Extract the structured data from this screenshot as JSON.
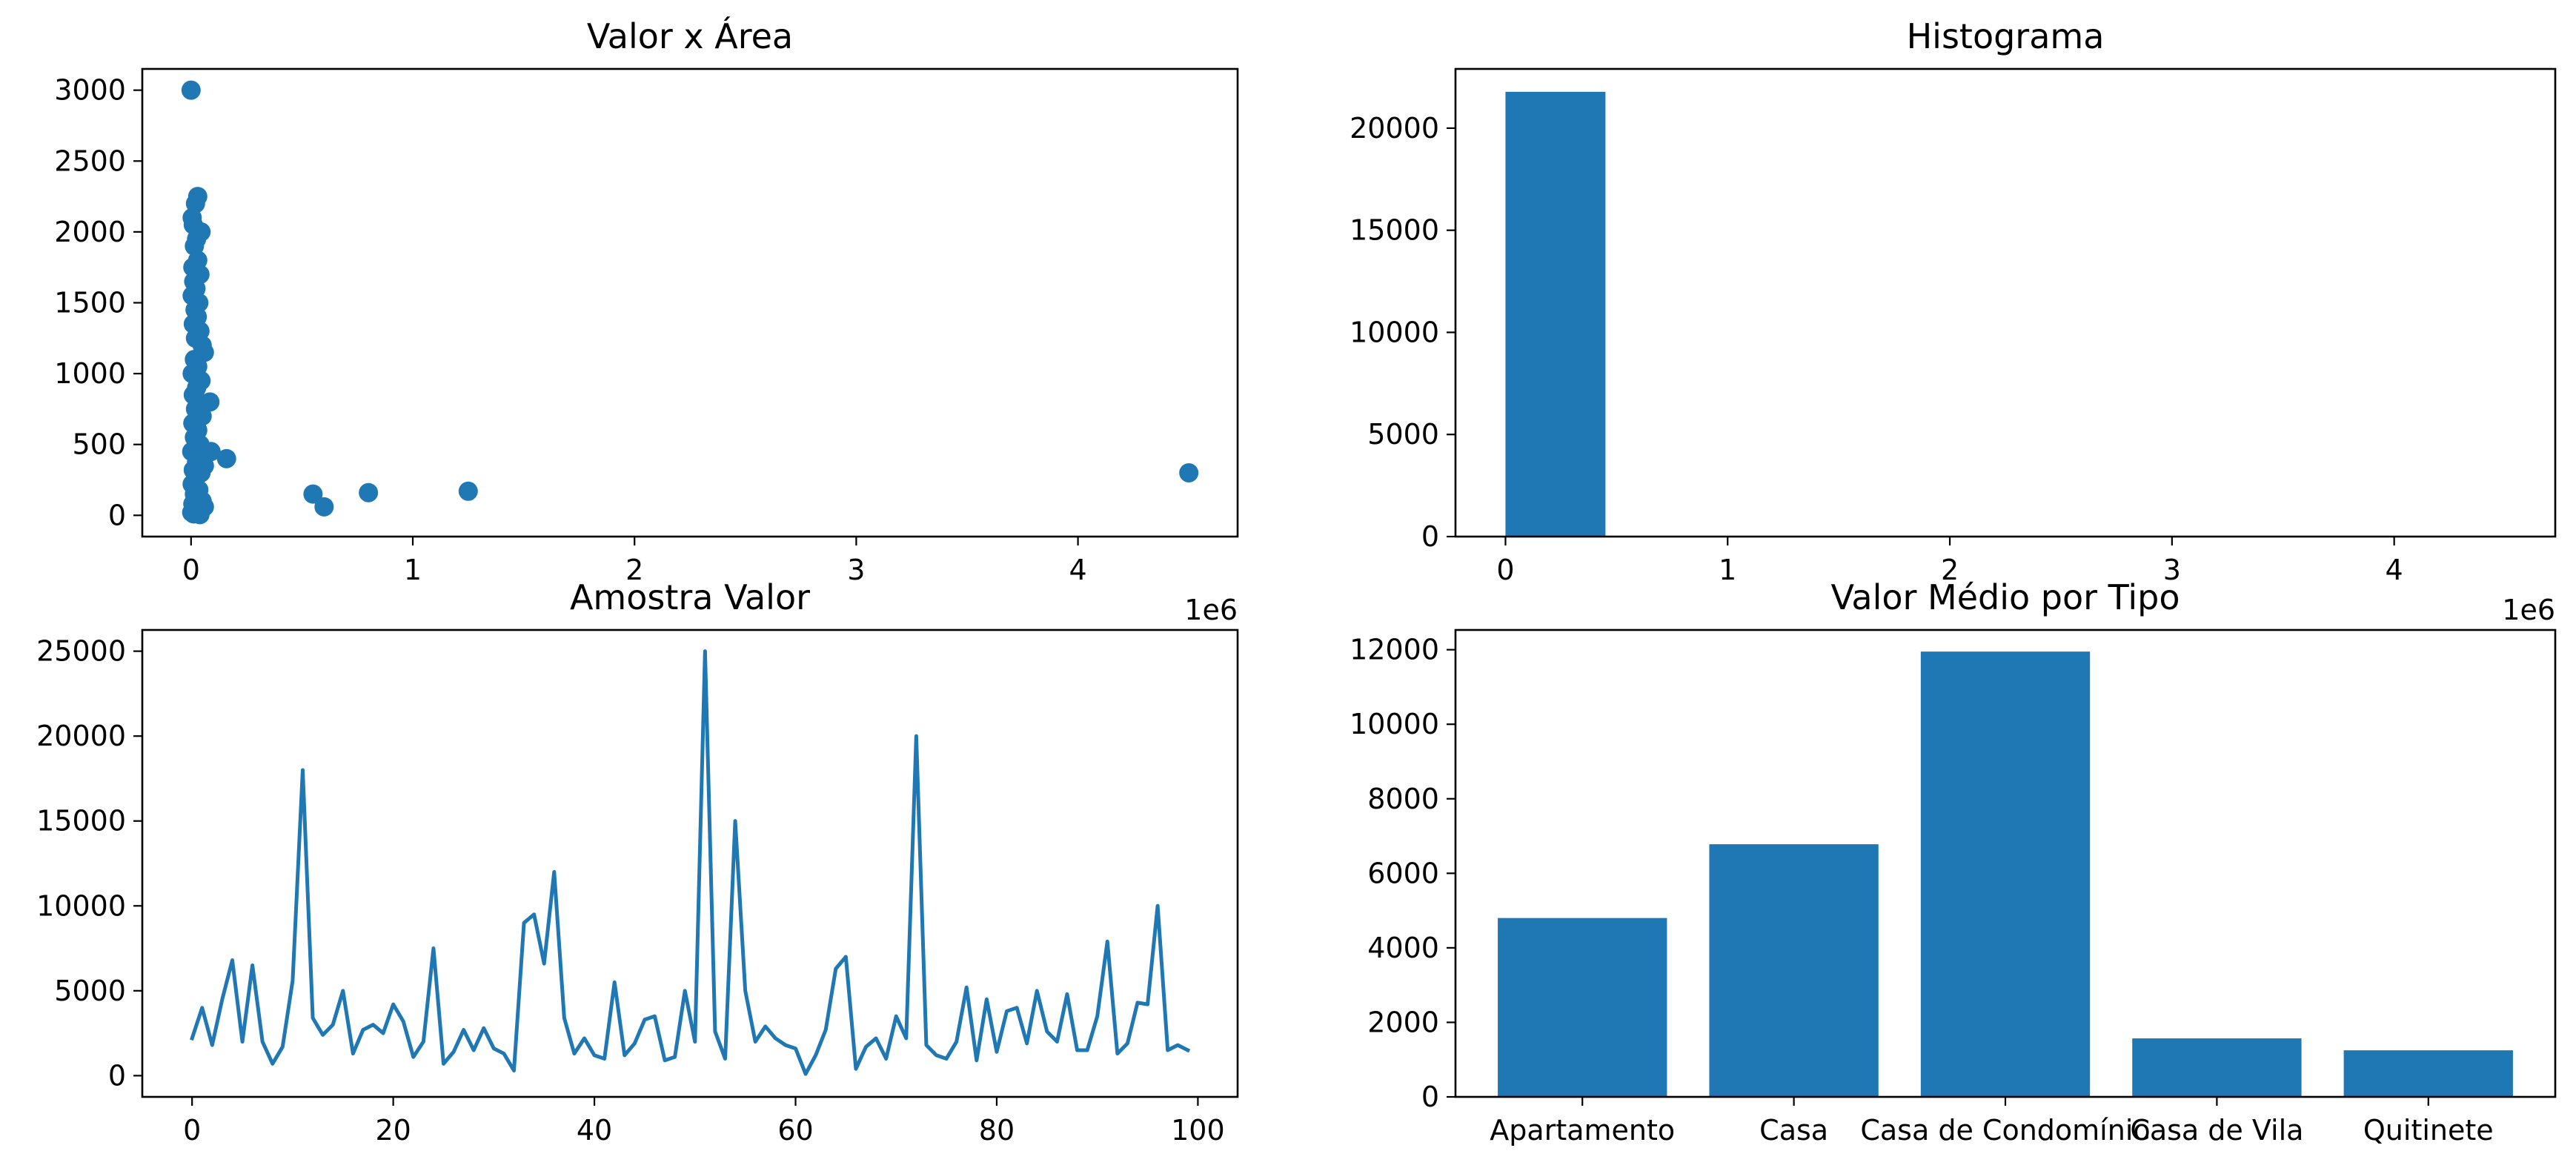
{
  "chart_data": [
    {
      "type": "scatter",
      "title": "Valor x Área",
      "xlabel": "",
      "ylabel": "",
      "x_offset_label": "1e6",
      "xlim": [
        -0.22,
        4.72
      ],
      "ylim": [
        -150,
        3150
      ],
      "x_ticks": [
        0,
        1,
        2,
        3,
        4
      ],
      "y_ticks": [
        0,
        500,
        1000,
        1500,
        2000,
        2500,
        3000
      ],
      "grid": false,
      "color": "#1f77b4",
      "points": [
        [
          0.0,
          3000
        ],
        [
          0.03,
          2250
        ],
        [
          0.02,
          2200
        ],
        [
          0.005,
          2100
        ],
        [
          0.01,
          2050
        ],
        [
          0.045,
          2000
        ],
        [
          0.025,
          1950
        ],
        [
          0.015,
          1900
        ],
        [
          0.03,
          1800
        ],
        [
          0.008,
          1750
        ],
        [
          0.04,
          1700
        ],
        [
          0.012,
          1650
        ],
        [
          0.022,
          1600
        ],
        [
          0.005,
          1550
        ],
        [
          0.035,
          1500
        ],
        [
          0.018,
          1450
        ],
        [
          0.028,
          1400
        ],
        [
          0.01,
          1350
        ],
        [
          0.04,
          1300
        ],
        [
          0.02,
          1250
        ],
        [
          0.05,
          1200
        ],
        [
          0.06,
          1150
        ],
        [
          0.015,
          1100
        ],
        [
          0.03,
          1050
        ],
        [
          0.005,
          1000
        ],
        [
          0.045,
          950
        ],
        [
          0.025,
          900
        ],
        [
          0.01,
          850
        ],
        [
          0.035,
          800
        ],
        [
          0.085,
          800
        ],
        [
          0.02,
          750
        ],
        [
          0.05,
          700
        ],
        [
          0.008,
          650
        ],
        [
          0.03,
          600
        ],
        [
          0.015,
          550
        ],
        [
          0.04,
          500
        ],
        [
          0.003,
          450
        ],
        [
          0.09,
          450
        ],
        [
          0.16,
          400
        ],
        [
          0.025,
          380
        ],
        [
          0.06,
          350
        ],
        [
          0.01,
          320
        ],
        [
          0.045,
          300
        ],
        [
          0.02,
          260
        ],
        [
          0.005,
          220
        ],
        [
          0.035,
          180
        ],
        [
          0.015,
          150
        ],
        [
          0.025,
          120
        ],
        [
          0.05,
          100
        ],
        [
          0.008,
          80
        ],
        [
          0.06,
          60
        ],
        [
          0.02,
          40
        ],
        [
          0.003,
          20
        ],
        [
          0.012,
          10
        ],
        [
          0.04,
          5
        ],
        [
          0.55,
          150
        ],
        [
          0.6,
          60
        ],
        [
          0.8,
          160
        ],
        [
          1.25,
          170
        ],
        [
          4.5,
          300
        ]
      ]
    },
    {
      "type": "bar",
      "title": "Histograma",
      "xlabel": "",
      "ylabel": "",
      "x_offset_label": "1e6",
      "xlim": [
        -0.225,
        4.725
      ],
      "ylim": [
        0,
        22900
      ],
      "x_ticks": [
        0,
        1,
        2,
        3,
        4
      ],
      "y_ticks": [
        0,
        5000,
        10000,
        15000,
        20000
      ],
      "grid": false,
      "color": "#1f77b4",
      "bin_edges": [
        0,
        0.45,
        0.9,
        1.35,
        1.8,
        2.25,
        2.7,
        3.15,
        3.6,
        4.05,
        4.5
      ],
      "counts": [
        21780,
        5,
        1,
        1,
        0,
        0,
        0,
        0,
        0,
        1
      ]
    },
    {
      "type": "line",
      "title": "Amostra Valor",
      "xlabel": "",
      "ylabel": "",
      "xlim": [
        -4.95,
        103.95
      ],
      "ylim": [
        -1250,
        26250
      ],
      "x_ticks": [
        0,
        20,
        40,
        60,
        80,
        100
      ],
      "y_ticks": [
        0,
        5000,
        10000,
        15000,
        20000,
        25000
      ],
      "grid": false,
      "color": "#1f77b4",
      "values": [
        2200,
        4000,
        1800,
        4500,
        6800,
        2000,
        6500,
        2000,
        700,
        1700,
        5600,
        18000,
        3400,
        2400,
        3000,
        5000,
        1300,
        2700,
        3000,
        2500,
        4200,
        3200,
        1100,
        2000,
        7500,
        700,
        1400,
        2700,
        1500,
        2800,
        1600,
        1300,
        300,
        9000,
        9500,
        6600,
        12000,
        3400,
        1300,
        2200,
        1200,
        1000,
        5500,
        1200,
        1900,
        3300,
        3500,
        900,
        1100,
        5000,
        2000,
        25000,
        2600,
        1000,
        15000,
        5000,
        2000,
        2900,
        2200,
        1800,
        1600,
        100,
        1200,
        2700,
        6300,
        7000,
        400,
        1700,
        2200,
        1000,
        3500,
        2200,
        20000,
        1800,
        1200,
        1000,
        2000,
        5200,
        900,
        4500,
        1400,
        3800,
        4000,
        1900,
        5000,
        2600,
        2000,
        4800,
        1500,
        1500,
        3500,
        7900,
        1300,
        1900,
        4300,
        4200,
        10000,
        1500,
        1800,
        1500
      ]
    },
    {
      "type": "bar",
      "title": "Valor Médio por Tipo",
      "xlabel": "",
      "ylabel": "",
      "ylim": [
        0,
        12530
      ],
      "y_ticks": [
        0,
        2000,
        4000,
        6000,
        8000,
        10000,
        12000
      ],
      "grid": false,
      "color": "#1f77b4",
      "categories": [
        "Apartamento",
        "Casa",
        "Casa de Condomínio",
        "Casa de Vila",
        "Quitinete"
      ],
      "values": [
        4800,
        6780,
        11950,
        1570,
        1250
      ]
    }
  ]
}
